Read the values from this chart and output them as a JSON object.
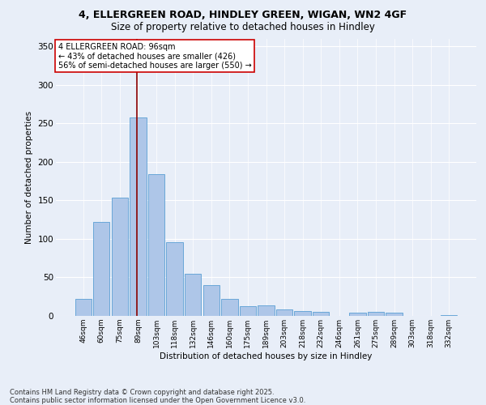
{
  "title_line1": "4, ELLERGREEN ROAD, HINDLEY GREEN, WIGAN, WN2 4GF",
  "title_line2": "Size of property relative to detached houses in Hindley",
  "xlabel": "Distribution of detached houses by size in Hindley",
  "ylabel": "Number of detached properties",
  "categories": [
    "46sqm",
    "60sqm",
    "75sqm",
    "89sqm",
    "103sqm",
    "118sqm",
    "132sqm",
    "146sqm",
    "160sqm",
    "175sqm",
    "189sqm",
    "203sqm",
    "218sqm",
    "232sqm",
    "246sqm",
    "261sqm",
    "275sqm",
    "289sqm",
    "303sqm",
    "318sqm",
    "332sqm"
  ],
  "values": [
    22,
    122,
    153,
    257,
    184,
    96,
    55,
    40,
    22,
    13,
    14,
    8,
    6,
    5,
    0,
    4,
    5,
    4,
    0,
    0,
    1
  ],
  "bar_color": "#aec6e8",
  "bar_edge_color": "#5a9fd4",
  "vline_color": "#8b0000",
  "vline_pos": 3.43,
  "annotation_line1": "4 ELLERGREEN ROAD: 96sqm",
  "annotation_line2": "← 43% of detached houses are smaller (426)",
  "annotation_line3": "56% of semi-detached houses are larger (550) →",
  "annotation_box_color": "#ffffff",
  "annotation_box_edge": "#cc0000",
  "ylim": [
    0,
    360
  ],
  "yticks": [
    0,
    50,
    100,
    150,
    200,
    250,
    300,
    350
  ],
  "background_color": "#e8eef8",
  "grid_color": "#ffffff",
  "footer_line1": "Contains HM Land Registry data © Crown copyright and database right 2025.",
  "footer_line2": "Contains public sector information licensed under the Open Government Licence v3.0."
}
